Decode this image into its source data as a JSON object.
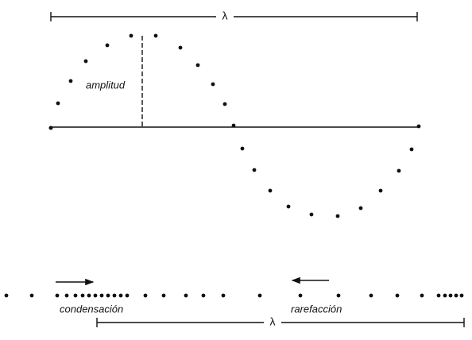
{
  "labels": {
    "wavelength_top": "λ",
    "amplitude": "amplitud",
    "condensation": "condensación",
    "rarefaction": "rarefacción",
    "wavelength_bottom": "λ"
  }
}
